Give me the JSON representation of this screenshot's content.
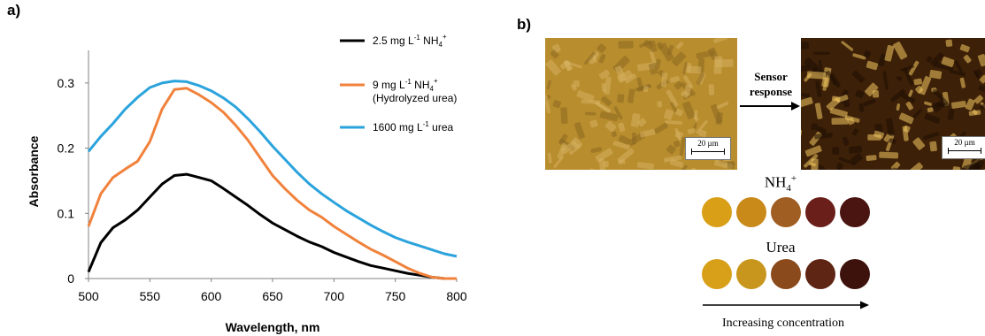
{
  "panel_labels": {
    "a": "a)",
    "b": "b)"
  },
  "chart_data": {
    "type": "line",
    "xlabel": "Wavelength, nm",
    "ylabel": "Absorbance",
    "xlim": [
      500,
      800
    ],
    "ylim": [
      0,
      0.35
    ],
    "xticks": [
      "500",
      "550",
      "600",
      "650",
      "700",
      "750",
      "800"
    ],
    "yticks": [
      "0",
      "0.1",
      "0.2",
      "0.3"
    ],
    "grid": false,
    "legend_position": "top-right",
    "series": [
      {
        "name": "2.5 mg L-1 NH4+",
        "color": "#000000",
        "x": [
          500,
          510,
          520,
          530,
          540,
          550,
          560,
          570,
          580,
          590,
          600,
          610,
          620,
          630,
          640,
          650,
          660,
          670,
          680,
          690,
          700,
          710,
          720,
          730,
          740,
          750,
          760,
          770,
          780,
          790,
          800
        ],
        "y": [
          0.01,
          0.055,
          0.078,
          0.09,
          0.105,
          0.125,
          0.145,
          0.158,
          0.16,
          0.155,
          0.15,
          0.138,
          0.125,
          0.112,
          0.098,
          0.085,
          0.075,
          0.065,
          0.056,
          0.049,
          0.04,
          0.033,
          0.026,
          0.02,
          0.016,
          0.012,
          0.008,
          0.005,
          0.002,
          0.0,
          0.0
        ]
      },
      {
        "name": "9 mg L-1 NH4+ (Hydrolyzed urea)",
        "color": "#f0823c",
        "x": [
          500,
          510,
          520,
          530,
          540,
          550,
          560,
          570,
          580,
          590,
          600,
          610,
          620,
          630,
          640,
          650,
          660,
          670,
          680,
          690,
          700,
          710,
          720,
          730,
          740,
          750,
          760,
          770,
          780,
          790,
          800
        ],
        "y": [
          0.08,
          0.13,
          0.155,
          0.168,
          0.18,
          0.21,
          0.26,
          0.29,
          0.292,
          0.282,
          0.27,
          0.255,
          0.235,
          0.212,
          0.185,
          0.158,
          0.138,
          0.12,
          0.105,
          0.094,
          0.08,
          0.068,
          0.056,
          0.045,
          0.036,
          0.026,
          0.016,
          0.008,
          0.002,
          0.0,
          0.0
        ]
      },
      {
        "name": "1600 mg L-1 urea",
        "color": "#2ba3dc",
        "x": [
          500,
          510,
          520,
          530,
          540,
          550,
          560,
          570,
          580,
          590,
          600,
          610,
          620,
          630,
          640,
          650,
          660,
          670,
          680,
          690,
          700,
          710,
          720,
          730,
          740,
          750,
          760,
          770,
          780,
          790,
          800
        ],
        "y": [
          0.195,
          0.218,
          0.238,
          0.26,
          0.278,
          0.293,
          0.3,
          0.303,
          0.302,
          0.296,
          0.288,
          0.277,
          0.263,
          0.245,
          0.225,
          0.203,
          0.183,
          0.163,
          0.145,
          0.13,
          0.117,
          0.104,
          0.093,
          0.082,
          0.072,
          0.063,
          0.056,
          0.05,
          0.044,
          0.038,
          0.034
        ]
      }
    ]
  },
  "legend": [
    {
      "main": "2.5 mg L",
      "sup1": "-1",
      "mid": " NH",
      "sub": "4",
      "sup2": "+",
      "line2": ""
    },
    {
      "main": "9 mg L",
      "sup1": "-1",
      "mid": " NH",
      "sub": "4",
      "sup2": "+",
      "line2": "(Hydrolyzed urea)"
    },
    {
      "main": "1600 mg L",
      "sup1": "-1",
      "mid": " urea",
      "sub": "",
      "sup2": "",
      "line2": ""
    }
  ],
  "panel_b": {
    "sensor_line1": "Sensor",
    "sensor_line2": "response",
    "scale_bar": "20 µm",
    "nh4_label_main": "NH",
    "nh4_label_sub": "4",
    "nh4_label_sup": "+",
    "urea_label": "Urea",
    "increasing_label": "Increasing concentration",
    "nh4_swatches": [
      "#d9a017",
      "#c98a1a",
      "#a05e22",
      "#6a1f1a",
      "#4a1410"
    ],
    "urea_swatches": [
      "#d8a018",
      "#c8961c",
      "#8b4a1c",
      "#5e2414",
      "#3e120c"
    ],
    "micro_left_color": "#b88d2e",
    "micro_right_color": "#3d2008"
  }
}
